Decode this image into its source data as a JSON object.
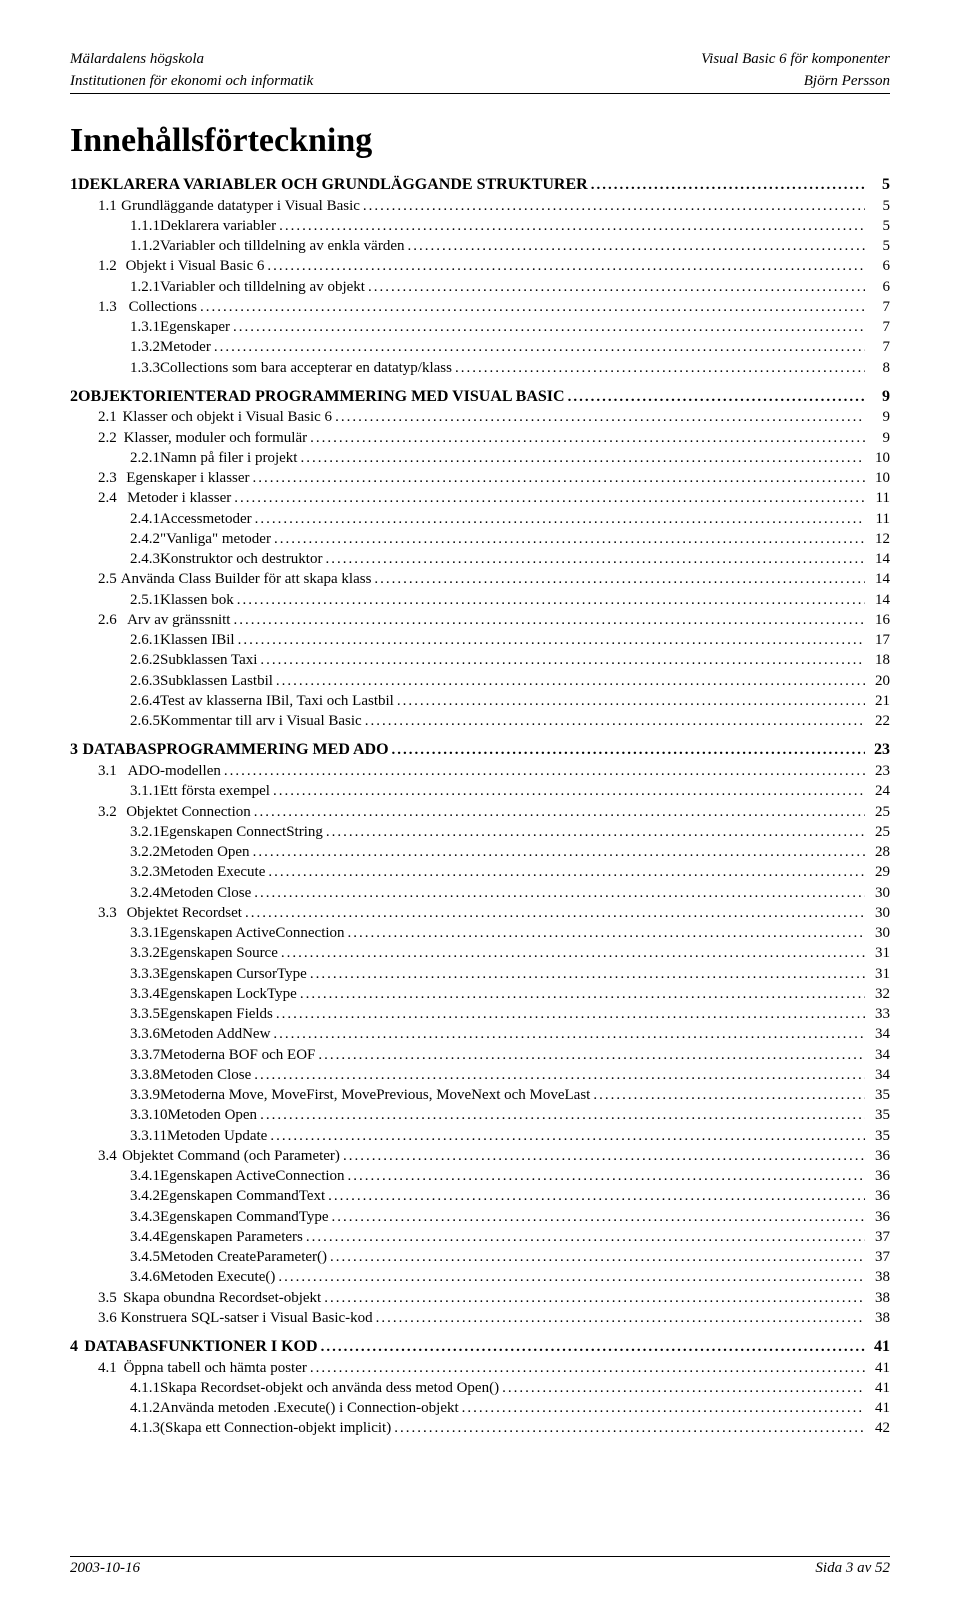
{
  "header": {
    "left1": "Mälardalens högskola",
    "left2": "Institutionen för ekonomi och informatik",
    "right1": "Visual Basic 6 för komponenter",
    "right2": "Björn Persson"
  },
  "title": "Innehållsförteckning",
  "toc": [
    {
      "level": 1,
      "num": "1",
      "label": "DEKLARERA VARIABLER OCH GRUNDLÄGGANDE STRUKTURER",
      "page": "5"
    },
    {
      "level": 2,
      "num": "1.1",
      "label": "Grundläggande datatyper i Visual Basic",
      "page": "5"
    },
    {
      "level": 3,
      "num": "1.1.1",
      "label": "Deklarera variabler",
      "page": "5"
    },
    {
      "level": 3,
      "num": "1.1.2",
      "label": "Variabler och tilldelning av enkla värden",
      "page": "5"
    },
    {
      "level": 2,
      "num": "1.2",
      "label": "Objekt i Visual Basic 6",
      "page": "6"
    },
    {
      "level": 3,
      "num": "1.2.1",
      "label": "Variabler och tilldelning av objekt",
      "page": "6"
    },
    {
      "level": 2,
      "num": "1.3",
      "label": "Collections",
      "page": "7"
    },
    {
      "level": 3,
      "num": "1.3.1",
      "label": "Egenskaper",
      "page": "7"
    },
    {
      "level": 3,
      "num": "1.3.2",
      "label": "Metoder",
      "page": "7"
    },
    {
      "level": 3,
      "num": "1.3.3",
      "label": "Collections som bara accepterar en datatyp/klass",
      "page": "8"
    },
    {
      "level": 1,
      "num": "2",
      "label": "OBJEKTORIENTERAD PROGRAMMERING MED VISUAL BASIC",
      "page": "9"
    },
    {
      "level": 2,
      "num": "2.1",
      "label": "Klasser och objekt i Visual Basic 6",
      "page": "9"
    },
    {
      "level": 2,
      "num": "2.2",
      "label": "Klasser, moduler och formulär",
      "page": "9"
    },
    {
      "level": 3,
      "num": "2.2.1",
      "label": "Namn på filer i projekt",
      "page": "10"
    },
    {
      "level": 2,
      "num": "2.3",
      "label": "Egenskaper i klasser",
      "page": "10"
    },
    {
      "level": 2,
      "num": "2.4",
      "label": "Metoder i klasser",
      "page": "11"
    },
    {
      "level": 3,
      "num": "2.4.1",
      "label": "Accessmetoder",
      "page": "11"
    },
    {
      "level": 3,
      "num": "2.4.2",
      "label": "\"Vanliga\" metoder",
      "page": "12"
    },
    {
      "level": 3,
      "num": "2.4.3",
      "label": "Konstruktor och destruktor",
      "page": "14"
    },
    {
      "level": 2,
      "num": "2.5",
      "label": "Använda Class Builder för att skapa klass",
      "page": "14"
    },
    {
      "level": 3,
      "num": "2.5.1",
      "label": "Klassen bok",
      "page": "14"
    },
    {
      "level": 2,
      "num": "2.6",
      "label": "Arv av gränssnitt",
      "page": "16"
    },
    {
      "level": 3,
      "num": "2.6.1",
      "label": "Klassen IBil",
      "page": "17"
    },
    {
      "level": 3,
      "num": "2.6.2",
      "label": "Subklassen Taxi",
      "page": "18"
    },
    {
      "level": 3,
      "num": "2.6.3",
      "label": "Subklassen Lastbil",
      "page": "20"
    },
    {
      "level": 3,
      "num": "2.6.4",
      "label": "Test av klasserna IBil, Taxi och Lastbil",
      "page": "21"
    },
    {
      "level": 3,
      "num": "2.6.5",
      "label": "Kommentar till arv i Visual Basic",
      "page": "22"
    },
    {
      "level": 1,
      "num": "3",
      "label": "DATABASPROGRAMMERING MED ADO",
      "page": "23"
    },
    {
      "level": 2,
      "num": "3.1",
      "label": "ADO-modellen",
      "page": "23"
    },
    {
      "level": 3,
      "num": "3.1.1",
      "label": "Ett första exempel",
      "page": "24"
    },
    {
      "level": 2,
      "num": "3.2",
      "label": "Objektet Connection",
      "page": "25"
    },
    {
      "level": 3,
      "num": "3.2.1",
      "label": "Egenskapen ConnectString",
      "page": "25"
    },
    {
      "level": 3,
      "num": "3.2.2",
      "label": "Metoden Open",
      "page": "28"
    },
    {
      "level": 3,
      "num": "3.2.3",
      "label": "Metoden Execute",
      "page": "29"
    },
    {
      "level": 3,
      "num": "3.2.4",
      "label": "Metoden Close",
      "page": "30"
    },
    {
      "level": 2,
      "num": "3.3",
      "label": "Objektet Recordset",
      "page": "30"
    },
    {
      "level": 3,
      "num": "3.3.1",
      "label": "Egenskapen ActiveConnection",
      "page": "30"
    },
    {
      "level": 3,
      "num": "3.3.2",
      "label": "Egenskapen Source",
      "page": "31"
    },
    {
      "level": 3,
      "num": "3.3.3",
      "label": "Egenskapen CursorType",
      "page": "31"
    },
    {
      "level": 3,
      "num": "3.3.4",
      "label": "Egenskapen LockType",
      "page": "32"
    },
    {
      "level": 3,
      "num": "3.3.5",
      "label": "Egenskapen Fields",
      "page": "33"
    },
    {
      "level": 3,
      "num": "3.3.6",
      "label": "Metoden AddNew",
      "page": "34"
    },
    {
      "level": 3,
      "num": "3.3.7",
      "label": "Metoderna BOF och EOF",
      "page": "34"
    },
    {
      "level": 3,
      "num": "3.3.8",
      "label": "Metoden Close",
      "page": "34"
    },
    {
      "level": 3,
      "num": "3.3.9",
      "label": "Metoderna Move, MoveFirst, MovePrevious, MoveNext och MoveLast",
      "page": "35"
    },
    {
      "level": 3,
      "num": "3.3.10",
      "label": "Metoden Open",
      "page": "35"
    },
    {
      "level": 3,
      "num": "3.3.11",
      "label": "Metoden Update",
      "page": "35"
    },
    {
      "level": 2,
      "num": "3.4",
      "label": "Objektet Command (och Parameter)",
      "page": "36"
    },
    {
      "level": 3,
      "num": "3.4.1",
      "label": "Egenskapen ActiveConnection",
      "page": "36"
    },
    {
      "level": 3,
      "num": "3.4.2",
      "label": "Egenskapen CommandText",
      "page": "36"
    },
    {
      "level": 3,
      "num": "3.4.3",
      "label": "Egenskapen CommandType",
      "page": "36"
    },
    {
      "level": 3,
      "num": "3.4.4",
      "label": "Egenskapen Parameters",
      "page": "37"
    },
    {
      "level": 3,
      "num": "3.4.5",
      "label": "Metoden CreateParameter()",
      "page": "37"
    },
    {
      "level": 3,
      "num": "3.4.6",
      "label": "Metoden Execute()",
      "page": "38"
    },
    {
      "level": 2,
      "num": "3.5",
      "label": "Skapa obundna Recordset-objekt",
      "page": "38"
    },
    {
      "level": 2,
      "num": "3.6",
      "label": "Konstruera SQL-satser i Visual Basic-kod",
      "page": "38"
    },
    {
      "level": 1,
      "num": "4",
      "label": "DATABASFUNKTIONER I KOD",
      "page": "41"
    },
    {
      "level": 2,
      "num": "4.1",
      "label": "Öppna tabell och hämta poster",
      "page": "41"
    },
    {
      "level": 3,
      "num": "4.1.1",
      "label": "Skapa Recordset-objekt och använda dess metod Open()",
      "page": "41"
    },
    {
      "level": 3,
      "num": "4.1.2",
      "label": "Använda metoden .Execute() i Connection-objekt",
      "page": "41"
    },
    {
      "level": 3,
      "num": "4.1.3",
      "label": "(Skapa ett Connection-objekt implicit)",
      "page": "42"
    }
  ],
  "footer": {
    "left": "2003-10-16",
    "right": "Sida 3 av 52"
  }
}
